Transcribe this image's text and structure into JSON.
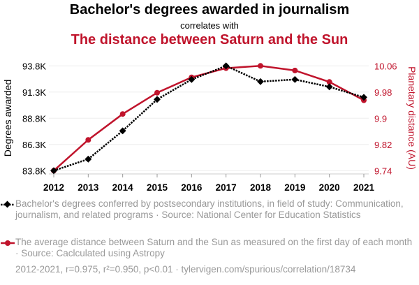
{
  "header": {
    "title": "Bachelor's degrees awarded in journalism",
    "subtitle": "correlates with",
    "title2": "The distance between Saturn and the Sun"
  },
  "colors": {
    "series1": "#000000",
    "series2": "#c0142c",
    "legend_text": "#999999"
  },
  "chart_data": {
    "type": "line",
    "x": [
      2012,
      2013,
      2014,
      2015,
      2016,
      2017,
      2018,
      2019,
      2020,
      2021
    ],
    "series": [
      {
        "name": "Bachelor's degrees conferred by postsecondary institutions, in field of study: Communication, journalism, and related programs · Source: National Center for Education Statistics",
        "axis": "left",
        "values": [
          83.8,
          84.9,
          87.6,
          90.6,
          92.5,
          93.8,
          92.3,
          92.5,
          91.8,
          90.8
        ],
        "unit": "K",
        "style": "dotted",
        "marker": "diamond"
      },
      {
        "name": "The average distance between Saturn and the Sun as measured on the first day of each month · Source: Caclculated using Astropy",
        "axis": "right",
        "values": [
          9.74,
          9.834,
          9.913,
          9.978,
          10.025,
          10.053,
          10.06,
          10.046,
          10.011,
          9.955
        ],
        "style": "solid",
        "marker": "circle"
      }
    ],
    "ylabel_left": "Degrees awarded",
    "ylabel_right": "Planetary distance (AU)",
    "ylim_left": [
      83.8,
      93.8
    ],
    "ylim_right": [
      9.74,
      10.06
    ],
    "yticks_left": [
      "83.8K",
      "86.3K",
      "88.8K",
      "91.3K",
      "93.8K"
    ],
    "yticks_right": [
      "9.74",
      "9.82",
      "9.9",
      "9.98",
      "10.06"
    ],
    "xticks": [
      "2012",
      "2013",
      "2014",
      "2015",
      "2016",
      "2017",
      "2018",
      "2019",
      "2020",
      "2021"
    ],
    "grid": true
  },
  "legend": {
    "item1": "Bachelor's degrees conferred by postsecondary institutions, in field of study: Communication, journalism, and related programs · Source: National Center for Education Statistics",
    "item2": "The average distance between Saturn and the Sun as measured on the first day of each month · Source: Caclculated using Astropy"
  },
  "footer": "2012-2021, r=0.975, r²=0.950, p<0.01 · tylervigen.com/spurious/correlation/18734"
}
